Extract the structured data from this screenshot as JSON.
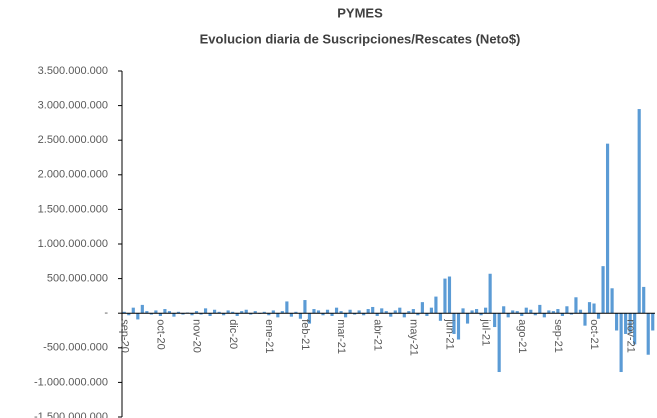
{
  "chart_data": {
    "type": "bar",
    "title": "PYMES",
    "subtitle": "Evolucion diaria de Suscripciones/Rescates (Neto$)",
    "color": "#5b9bd5",
    "categories": [
      "sep-20",
      null,
      null,
      null,
      null,
      null,
      null,
      null,
      "oct-20",
      null,
      null,
      null,
      null,
      null,
      null,
      null,
      "nov-20",
      null,
      null,
      null,
      null,
      null,
      null,
      null,
      "dic-20",
      null,
      null,
      null,
      null,
      null,
      null,
      null,
      "ene-21",
      null,
      null,
      null,
      null,
      null,
      null,
      null,
      "feb-21",
      null,
      null,
      null,
      null,
      null,
      null,
      null,
      "mar-21",
      null,
      null,
      null,
      null,
      null,
      null,
      null,
      "abr-21",
      null,
      null,
      null,
      null,
      null,
      null,
      null,
      "may-21",
      null,
      null,
      null,
      null,
      null,
      null,
      null,
      "jun-21",
      null,
      null,
      null,
      null,
      null,
      null,
      null,
      "jul-21",
      null,
      null,
      null,
      null,
      null,
      null,
      null,
      "ago-21",
      null,
      null,
      null,
      null,
      null,
      null,
      null,
      "sep-21",
      null,
      null,
      null,
      null,
      null,
      null,
      null,
      "oct-21",
      null,
      null,
      null,
      null,
      null,
      null,
      null,
      "nov-21",
      null,
      null,
      null,
      null,
      null
    ],
    "values": [
      20000000,
      -30000000,
      80000000,
      -90000000,
      120000000,
      30000000,
      -20000000,
      40000000,
      -40000000,
      60000000,
      30000000,
      -50000000,
      20000000,
      -20000000,
      10000000,
      -30000000,
      30000000,
      -20000000,
      70000000,
      -40000000,
      50000000,
      20000000,
      -30000000,
      40000000,
      20000000,
      -40000000,
      30000000,
      50000000,
      -20000000,
      30000000,
      -10000000,
      20000000,
      -30000000,
      40000000,
      -60000000,
      30000000,
      170000000,
      -50000000,
      20000000,
      -80000000,
      190000000,
      -150000000,
      60000000,
      40000000,
      -30000000,
      50000000,
      -40000000,
      80000000,
      30000000,
      -60000000,
      50000000,
      -20000000,
      40000000,
      -30000000,
      60000000,
      90000000,
      -40000000,
      70000000,
      30000000,
      -50000000,
      40000000,
      80000000,
      -60000000,
      30000000,
      60000000,
      -30000000,
      160000000,
      -40000000,
      80000000,
      240000000,
      -110000000,
      500000000,
      530000000,
      -300000000,
      -380000000,
      70000000,
      -150000000,
      40000000,
      60000000,
      -30000000,
      80000000,
      570000000,
      -200000000,
      -850000000,
      100000000,
      -60000000,
      40000000,
      30000000,
      -40000000,
      80000000,
      50000000,
      -30000000,
      120000000,
      -60000000,
      40000000,
      30000000,
      60000000,
      -40000000,
      100000000,
      -20000000,
      230000000,
      50000000,
      -180000000,
      160000000,
      140000000,
      -80000000,
      680000000,
      2450000000,
      360000000,
      -250000000,
      -850000000,
      -300000000,
      -280000000,
      -450000000,
      2950000000,
      380000000,
      -600000000,
      -250000000
    ],
    "ylim": [
      -1500000000,
      3500000000
    ],
    "yticks": [
      {
        "value": -1500000000,
        "label": "-1.500.000.000"
      },
      {
        "value": -1000000000,
        "label": "-1.000.000.000"
      },
      {
        "value": -500000000,
        "label": "-500.000.000"
      },
      {
        "value": 0,
        "label": "-"
      },
      {
        "value": 500000000,
        "label": "500.000.000"
      },
      {
        "value": 1000000000,
        "label": "1.000.000.000"
      },
      {
        "value": 1500000000,
        "label": "1.500.000.000"
      },
      {
        "value": 2000000000,
        "label": "2.000.000.000"
      },
      {
        "value": 2500000000,
        "label": "2.500.000.000"
      },
      {
        "value": 3000000000,
        "label": "3.000.000.000"
      },
      {
        "value": 3500000000,
        "label": "3.500.000.000"
      }
    ],
    "grid": false
  }
}
